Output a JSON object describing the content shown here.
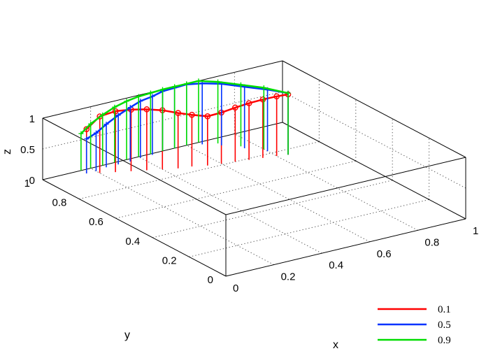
{
  "chart_data": {
    "type": "line",
    "subtype": "3d-stem",
    "title": "",
    "xlabel": "x",
    "ylabel": "y",
    "zlabel": "z",
    "xlim": [
      0,
      1
    ],
    "ylim": [
      0,
      1
    ],
    "zlim": [
      0,
      1
    ],
    "x_ticks": [
      "0",
      "0.2",
      "0.4",
      "0.6",
      "0.8",
      "1"
    ],
    "y_ticks": [
      "0",
      "0.2",
      "0.4",
      "0.6",
      "0.8",
      "1"
    ],
    "z_ticks": [
      "0",
      "0.5",
      "1"
    ],
    "grid": true,
    "legend_position": "bottom-right",
    "series": [
      {
        "name": "0.1",
        "color": "#ff0000",
        "marker": "circle",
        "x": [
          0.16,
          0.2,
          0.25,
          0.3,
          0.35,
          0.4,
          0.45,
          0.5,
          0.55,
          0.6,
          0.65,
          0.7,
          0.75,
          0.8,
          0.84
        ],
        "y": [
          0.97,
          0.95,
          0.93,
          0.91,
          0.89,
          0.87,
          0.85,
          0.84,
          0.82,
          0.81,
          0.8,
          0.79,
          0.78,
          0.77,
          0.76
        ],
        "z": [
          0.72,
          0.92,
          0.99,
          1.0,
          0.99,
          0.96,
          0.9,
          0.84,
          0.8,
          0.83,
          0.88,
          0.92,
          0.95,
          0.97,
          0.98
        ]
      },
      {
        "name": "0.5",
        "color": "#0033ff",
        "marker": "plus",
        "x": [
          0.16,
          0.2,
          0.25,
          0.3,
          0.35,
          0.4,
          0.45,
          0.5,
          0.55,
          0.6,
          0.65,
          0.7,
          0.75,
          0.8,
          0.84
        ],
        "y": [
          0.97,
          0.97,
          0.98,
          0.98,
          0.98,
          0.99,
          0.99,
          1.0,
          1.0,
          1.0,
          0.98,
          0.94,
          0.88,
          0.82,
          0.76
        ],
        "z": [
          0.56,
          0.62,
          0.7,
          0.8,
          0.88,
          0.92,
          0.95,
          0.97,
          0.98,
          0.99,
          0.99,
          1.0,
          1.0,
          1.0,
          1.0
        ]
      },
      {
        "name": "0.9",
        "color": "#00dd00",
        "marker": "plus",
        "x": [
          0.16,
          0.2,
          0.25,
          0.3,
          0.35,
          0.4,
          0.45,
          0.5,
          0.55,
          0.6,
          0.65,
          0.7,
          0.75,
          0.8,
          0.84
        ],
        "y": [
          1.0,
          1.0,
          1.0,
          1.0,
          1.0,
          1.0,
          1.0,
          1.0,
          1.0,
          1.0,
          1.0,
          0.96,
          0.9,
          0.84,
          0.76
        ],
        "z": [
          0.6,
          0.72,
          0.82,
          0.9,
          0.95,
          0.98,
          0.99,
          1.0,
          1.0,
          1.0,
          1.0,
          1.0,
          1.0,
          1.0,
          1.0
        ]
      }
    ]
  }
}
